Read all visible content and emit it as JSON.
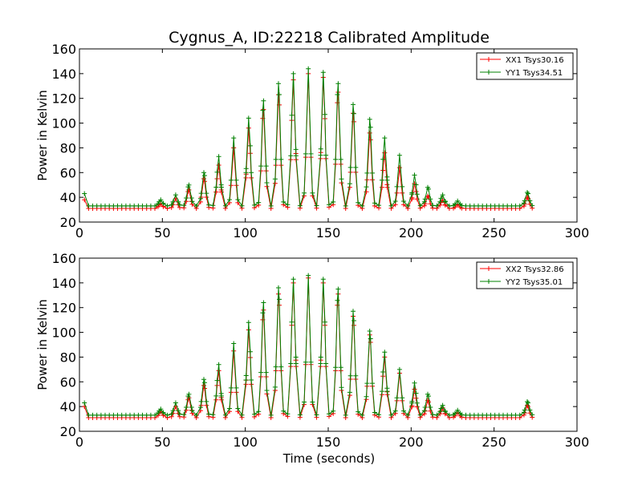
{
  "figure": {
    "title": "Cygnus_A, ID:22218 Calibrated Amplitude",
    "xlabel": "Time (seconds)"
  },
  "chart_data": [
    {
      "type": "line",
      "ylabel": "Power in Kelvin",
      "xlabel": "",
      "xlim": [
        0,
        300
      ],
      "ylim": [
        20,
        160
      ],
      "xticks": [
        0,
        50,
        100,
        150,
        200,
        250,
        300
      ],
      "yticks": [
        20,
        40,
        60,
        80,
        100,
        120,
        140,
        160
      ],
      "legend_position": "top-right",
      "grid": false,
      "baseline": {
        "start": 3,
        "end": 273,
        "step": 2.5
      },
      "series": [
        {
          "name": "XX1 Tsys30.16",
          "color": "#ff0000",
          "base": 31,
          "start_value": 38,
          "peaks": [
            [
              49,
              35
            ],
            [
              58,
              39
            ],
            [
              66,
              46
            ],
            [
              75,
              55
            ],
            [
              84,
              66
            ],
            [
              93,
              80
            ],
            [
              102,
              96
            ],
            [
              111,
              111
            ],
            [
              120,
              123
            ],
            [
              129,
              135
            ],
            [
              138,
              140
            ],
            [
              147,
              137
            ],
            [
              156,
              125
            ],
            [
              165,
              108
            ],
            [
              175,
              92
            ],
            [
              184,
              76
            ],
            [
              193,
              64
            ],
            [
              202,
              51
            ],
            [
              210,
              41
            ],
            [
              219,
              38
            ],
            [
              228,
              34
            ],
            [
              270,
              40
            ]
          ]
        },
        {
          "name": "YY1 Tsys34.51",
          "color": "#008000",
          "base": 33,
          "start_value": 43,
          "peaks": [
            [
              49,
              38
            ],
            [
              58,
              42
            ],
            [
              66,
              50
            ],
            [
              75,
              60
            ],
            [
              84,
              73
            ],
            [
              93,
              88
            ],
            [
              102,
              104
            ],
            [
              111,
              118
            ],
            [
              120,
              132
            ],
            [
              129,
              140
            ],
            [
              138,
              144
            ],
            [
              147,
              141
            ],
            [
              156,
              132
            ],
            [
              165,
              115
            ],
            [
              175,
              103
            ],
            [
              184,
              88
            ],
            [
              193,
              74
            ],
            [
              202,
              58
            ],
            [
              210,
              48
            ],
            [
              219,
              42
            ],
            [
              228,
              37
            ],
            [
              270,
              44
            ]
          ]
        }
      ]
    },
    {
      "type": "line",
      "ylabel": "Power in Kelvin",
      "xlabel": "Time (seconds)",
      "xlim": [
        0,
        300
      ],
      "ylim": [
        20,
        160
      ],
      "xticks": [
        0,
        50,
        100,
        150,
        200,
        250,
        300
      ],
      "yticks": [
        20,
        40,
        60,
        80,
        100,
        120,
        140,
        160
      ],
      "legend_position": "top-right",
      "grid": false,
      "baseline": {
        "start": 3,
        "end": 273,
        "step": 2.5
      },
      "series": [
        {
          "name": "XX2 Tsys32.86",
          "color": "#ff0000",
          "base": 31,
          "start_value": 40,
          "peaks": [
            [
              49,
              36
            ],
            [
              58,
              40
            ],
            [
              66,
              47
            ],
            [
              75,
              57
            ],
            [
              84,
              69
            ],
            [
              93,
              85
            ],
            [
              102,
              102
            ],
            [
              111,
              118
            ],
            [
              120,
              131
            ],
            [
              129,
              140
            ],
            [
              138,
              144
            ],
            [
              147,
              140
            ],
            [
              156,
              131
            ],
            [
              165,
              113
            ],
            [
              175,
              98
            ],
            [
              184,
              80
            ],
            [
              193,
              67
            ],
            [
              202,
              54
            ],
            [
              210,
              45
            ],
            [
              219,
              39
            ],
            [
              228,
              35
            ],
            [
              270,
              41
            ]
          ]
        },
        {
          "name": "YY2 Tsys35.01",
          "color": "#008000",
          "base": 33,
          "start_value": 43,
          "peaks": [
            [
              49,
              38
            ],
            [
              58,
              43
            ],
            [
              66,
              50
            ],
            [
              75,
              62
            ],
            [
              84,
              74
            ],
            [
              93,
              91
            ],
            [
              102,
              108
            ],
            [
              111,
              124
            ],
            [
              120,
              136
            ],
            [
              129,
              143
            ],
            [
              138,
              146
            ],
            [
              147,
              143
            ],
            [
              156,
              135
            ],
            [
              165,
              117
            ],
            [
              175,
              101
            ],
            [
              184,
              84
            ],
            [
              193,
              70
            ],
            [
              202,
              59
            ],
            [
              210,
              50
            ],
            [
              219,
              41
            ],
            [
              228,
              37
            ],
            [
              270,
              44
            ]
          ]
        }
      ]
    }
  ]
}
